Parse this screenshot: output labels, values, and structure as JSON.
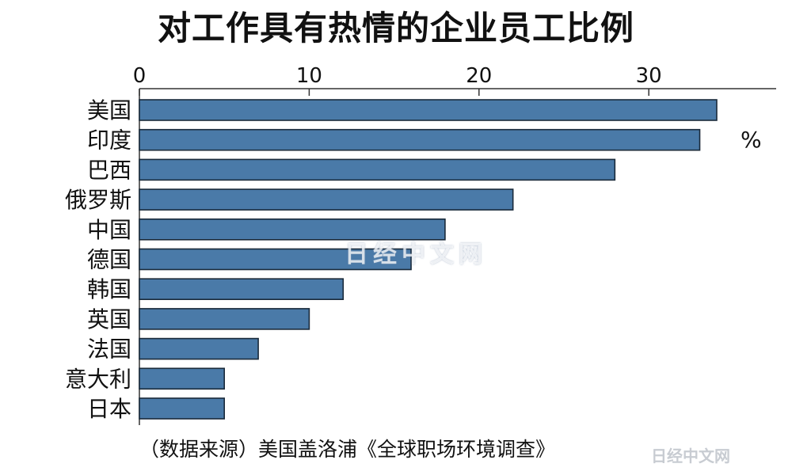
{
  "chart_data": {
    "type": "bar",
    "orientation": "horizontal",
    "title": "对工作具有热情的企业员工比例",
    "unit_label": "%",
    "categories": [
      "美国",
      "印度",
      "巴西",
      "俄罗斯",
      "中国",
      "德国",
      "韩国",
      "英国",
      "法国",
      "意大利",
      "日本"
    ],
    "values": [
      34,
      33,
      28,
      22,
      18,
      16,
      12,
      10,
      7,
      5,
      5
    ],
    "xlim": [
      0,
      37.5
    ],
    "xticks": [
      0,
      10,
      20,
      30
    ],
    "xaxis_position": "top",
    "grid": false,
    "bar_color": "#4a7aa8",
    "bar_edge_color": "#1a2a3a",
    "source": "（数据来源）美国盖洛浦《全球职场环境调查》"
  },
  "watermark": {
    "center": "日经中文网",
    "corner": "日经中文网"
  }
}
